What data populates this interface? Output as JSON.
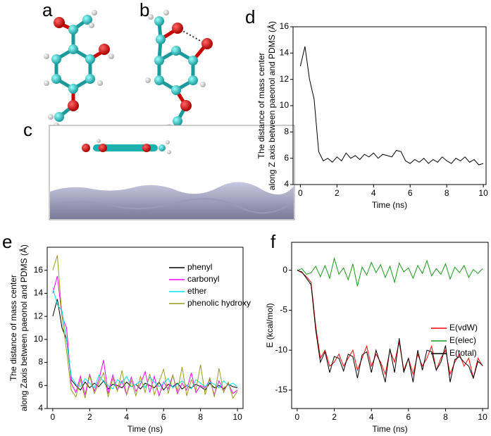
{
  "molecule_panels": [
    "a",
    "b",
    "c"
  ],
  "chart_data": [
    {
      "type": "line",
      "panel": "d",
      "y_label": [
        "The distance of mass center",
        "along Z axis between paeonol and PDMS (Å)"
      ],
      "x_label": "Time (ns)",
      "xlim": [
        -0.4,
        10.15
      ],
      "xticks": [
        0,
        2,
        4,
        6,
        8,
        10
      ],
      "ylim": [
        4,
        16
      ],
      "yticks": [
        4,
        6,
        8,
        10,
        12,
        14,
        16
      ],
      "x": [
        0,
        0.25,
        0.5,
        0.75,
        1,
        1.25,
        1.5,
        1.75,
        2,
        2.25,
        2.5,
        2.75,
        3,
        3.25,
        3.5,
        3.75,
        4,
        4.25,
        4.5,
        4.75,
        5,
        5.25,
        5.5,
        5.75,
        6,
        6.25,
        6.5,
        6.75,
        7,
        7.25,
        7.5,
        7.75,
        8,
        8.25,
        8.5,
        8.75,
        9,
        9.25,
        9.5,
        9.75,
        10
      ],
      "series": [
        {
          "color": "#000000",
          "values": [
            13,
            14.5,
            12,
            10.5,
            6.5,
            5.8,
            6.0,
            5.7,
            6.1,
            5.8,
            6.4,
            6.0,
            6.2,
            5.9,
            6.3,
            6.1,
            6.4,
            6.0,
            6.3,
            6.2,
            6.1,
            6.6,
            6.5,
            5.8,
            5.6,
            5.9,
            5.7,
            6.0,
            5.6,
            5.9,
            5.7,
            6.1,
            5.8,
            5.6,
            6.0,
            5.8,
            6.1,
            5.7,
            5.9,
            5.5,
            5.6
          ]
        }
      ]
    },
    {
      "type": "line",
      "panel": "e",
      "y_label": [
        "The distance of mass center",
        "along Zaxis between paeonol and PDMS (Å)"
      ],
      "x_label": "Time (ns)",
      "xlim": [
        -0.3,
        10.3
      ],
      "xticks": [
        0,
        2,
        4,
        6,
        8,
        10
      ],
      "ylim": [
        4,
        18
      ],
      "yticks": [
        4,
        6,
        8,
        10,
        12,
        14,
        16
      ],
      "x": [
        0,
        0.25,
        0.5,
        0.75,
        1,
        1.25,
        1.5,
        1.75,
        2,
        2.25,
        2.5,
        2.75,
        3,
        3.25,
        3.5,
        3.75,
        4,
        4.25,
        4.5,
        4.75,
        5,
        5.25,
        5.5,
        5.75,
        6,
        6.25,
        6.5,
        6.75,
        7,
        7.25,
        7.5,
        7.75,
        8,
        8.25,
        8.5,
        8.75,
        9,
        9.25,
        9.5,
        9.75,
        10
      ],
      "series": [
        {
          "name": "phenyl",
          "color": "#000000",
          "values": [
            12,
            13.5,
            11,
            10,
            6.5,
            6.0,
            5.6,
            6.3,
            5.8,
            6.2,
            5.9,
            6.4,
            5.7,
            6.1,
            6.0,
            5.8,
            6.3,
            5.9,
            6.1,
            5.7,
            6.2,
            6.0,
            5.8,
            6.3,
            5.6,
            6.1,
            5.9,
            6.2,
            5.7,
            6.0,
            5.8,
            6.1,
            5.9,
            5.6,
            6.2,
            5.8,
            6.0,
            5.7,
            6.1,
            5.9,
            5.8
          ]
        },
        {
          "name": "carbonyl",
          "color": "#ff00ff",
          "values": [
            14,
            15.5,
            12,
            11,
            6.2,
            5.4,
            6.8,
            5.2,
            7.0,
            5.5,
            6.5,
            8.2,
            5.3,
            6.9,
            5.6,
            6.4,
            5.2,
            6.7,
            5.5,
            6.1,
            7.2,
            5.4,
            6.8,
            5.1,
            6.3,
            5.7,
            6.9,
            5.3,
            6.2,
            5.6,
            7.1,
            5.4,
            6.0,
            5.8,
            6.5,
            5.2,
            6.4,
            5.5,
            6.2,
            5.3,
            5.6
          ]
        },
        {
          "name": "ether",
          "color": "#00e5ee",
          "values": [
            14.5,
            13,
            12.5,
            10,
            6.8,
            6.1,
            5.9,
            6.6,
            6.2,
            5.8,
            6.9,
            6.3,
            6.0,
            5.7,
            6.5,
            6.2,
            6.8,
            5.9,
            6.1,
            6.4,
            5.8,
            6.7,
            6.3,
            5.9,
            6.2,
            6.6,
            5.8,
            6.1,
            6.4,
            6.0,
            5.7,
            6.5,
            6.2,
            5.9,
            6.3,
            6.1,
            5.8,
            6.4,
            6.0,
            6.2,
            5.9
          ]
        },
        {
          "name": "phenolic hydroxy",
          "color": "#9a9a1e",
          "values": [
            16,
            17.3,
            12,
            9,
            5.6,
            5.0,
            6.5,
            4.9,
            6.9,
            5.3,
            6.2,
            7.1,
            5.0,
            6.6,
            5.5,
            7.3,
            5.2,
            6.4,
            5.1,
            6.8,
            5.4,
            7.0,
            5.2,
            6.3,
            7.4,
            5.3,
            6.9,
            5.5,
            7.6,
            5.1,
            6.5,
            5.6,
            7.8,
            5.2,
            6.7,
            5.0,
            7.5,
            5.4,
            6.3,
            4.9,
            5.5
          ]
        }
      ]
    },
    {
      "type": "line",
      "panel": "f",
      "y_label": [
        "E (kcal/mol)"
      ],
      "x_label": "Time (ns)",
      "xlim": [
        -0.3,
        10.3
      ],
      "xticks": [
        0,
        2,
        4,
        6,
        8,
        10
      ],
      "ylim": [
        -17.3,
        3.5
      ],
      "yticks": [
        -15,
        -10,
        -5,
        0
      ],
      "x": [
        0,
        0.25,
        0.5,
        0.75,
        1,
        1.25,
        1.5,
        1.75,
        2,
        2.25,
        2.5,
        2.75,
        3,
        3.25,
        3.5,
        3.75,
        4,
        4.25,
        4.5,
        4.75,
        5,
        5.25,
        5.5,
        5.75,
        6,
        6.25,
        6.5,
        6.75,
        7,
        7.25,
        7.5,
        7.75,
        8,
        8.25,
        8.5,
        8.75,
        9,
        9.25,
        9.5,
        9.75,
        10
      ],
      "series": [
        {
          "name": "E(vdW)",
          "color": "#ff0000",
          "values": [
            0,
            -0.3,
            -0.8,
            -1.5,
            -7,
            -11,
            -10,
            -12,
            -11.5,
            -10.5,
            -12,
            -11,
            -10,
            -12.5,
            -11,
            -9.5,
            -12,
            -10.5,
            -11.5,
            -13,
            -10,
            -11.5,
            -9,
            -12.5,
            -11,
            -13,
            -10.5,
            -12,
            -11,
            -9.5,
            -12.5,
            -11,
            -10,
            -13,
            -11.5,
            -10.5,
            -12,
            -11,
            -13.5,
            -11,
            -12
          ]
        },
        {
          "name": "E(elec)",
          "color": "#1a9a1a",
          "values": [
            0,
            0.2,
            -0.5,
            -0.3,
            0.5,
            -0.8,
            0.6,
            -1,
            1.5,
            -0.5,
            0.3,
            -1.2,
            0.8,
            -2,
            0.4,
            -0.6,
            1,
            -0.3,
            0.7,
            -0.9,
            0.5,
            -1.5,
            0.9,
            -0.2,
            0.3,
            -1,
            0.6,
            -0.4,
            1.2,
            -0.7,
            0.2,
            -0.5,
            0.8,
            -1.1,
            0.4,
            -0.3,
            0.6,
            -0.9,
            0.1,
            -0.4,
            0.2
          ]
        },
        {
          "name": "E(total)",
          "color": "#000000",
          "values": [
            0,
            -0.2,
            -1,
            -1.8,
            -7.5,
            -11.5,
            -10.2,
            -12.8,
            -10.8,
            -11,
            -12.6,
            -10.5,
            -10.8,
            -13.5,
            -10.6,
            -10.2,
            -12.8,
            -10,
            -11.8,
            -14,
            -9.8,
            -12.8,
            -8.5,
            -12.8,
            -11,
            -14,
            -10,
            -12.5,
            -10,
            -10.2,
            -12.5,
            -11.5,
            -9.4,
            -14,
            -11.2,
            -10.8,
            -11.5,
            -12,
            -13.5,
            -11.4,
            -11.9
          ]
        }
      ]
    }
  ]
}
